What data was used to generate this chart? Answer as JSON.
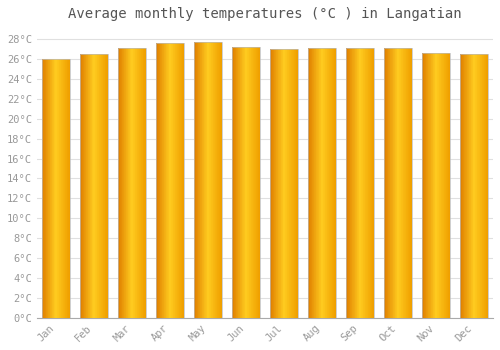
{
  "title": "Average monthly temperatures (°C ) in Langatian",
  "months": [
    "Jan",
    "Feb",
    "Mar",
    "Apr",
    "May",
    "Jun",
    "Jul",
    "Aug",
    "Sep",
    "Oct",
    "Nov",
    "Dec"
  ],
  "values": [
    26.0,
    26.5,
    27.1,
    27.6,
    27.7,
    27.2,
    27.0,
    27.1,
    27.1,
    27.1,
    26.6,
    26.5
  ],
  "ylim": [
    0,
    29
  ],
  "yticks": [
    0,
    2,
    4,
    6,
    8,
    10,
    12,
    14,
    16,
    18,
    20,
    22,
    24,
    26,
    28
  ],
  "bar_color_left": "#E08000",
  "bar_color_mid": "#FFB800",
  "bar_color_right": "#FFCC30",
  "bar_edge_color": "#BBBBBB",
  "background_color": "#FFFFFF",
  "grid_color": "#E0E0E0",
  "title_fontsize": 10,
  "tick_fontsize": 7.5,
  "title_color": "#555555",
  "tick_color": "#999999"
}
